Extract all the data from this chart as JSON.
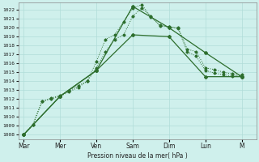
{
  "background_color": "#cff0ec",
  "grid_color": "#b0ddd8",
  "line_color": "#2d6e2d",
  "ylabel_text": "Pression niveau de la mer( hPa )",
  "ylim": [
    1007.5,
    1022.8
  ],
  "yticks": [
    1008,
    1009,
    1010,
    1011,
    1012,
    1013,
    1014,
    1015,
    1016,
    1017,
    1018,
    1019,
    1020,
    1021,
    1022
  ],
  "day_labels": [
    "Mar",
    "Mer",
    "Ven",
    "Sam",
    "Dim",
    "Lun",
    "M"
  ],
  "day_positions": [
    0,
    2,
    4,
    6,
    8,
    10,
    12
  ],
  "xlim": [
    -0.3,
    12.8
  ],
  "dotted1_x": [
    0,
    0.5,
    1.0,
    1.5,
    2.0,
    2.5,
    3.0,
    3.5,
    4.0,
    4.5,
    5.0,
    5.5,
    6.0,
    6.5,
    7.0,
    7.5,
    8.0,
    8.5,
    9.0,
    9.5,
    10.0,
    10.5,
    11.0,
    11.5,
    12.0
  ],
  "dotted1_y": [
    1008.0,
    1009.1,
    1011.7,
    1012.0,
    1012.3,
    1012.8,
    1013.3,
    1014.0,
    1016.2,
    1018.7,
    1019.2,
    1020.7,
    1022.2,
    1022.6,
    1021.2,
    1020.3,
    1020.1,
    1020.0,
    1017.6,
    1017.3,
    1015.5,
    1015.3,
    1015.0,
    1014.8,
    1014.7
  ],
  "dotted2_x": [
    0,
    0.5,
    1.0,
    1.5,
    2.0,
    2.5,
    3.0,
    3.5,
    4.0,
    4.5,
    5.0,
    5.5,
    6.0,
    6.5,
    7.0,
    7.5,
    8.0,
    8.5,
    9.0,
    9.5,
    10.0,
    10.5,
    11.0,
    11.5,
    12.0
  ],
  "dotted2_y": [
    1008.0,
    1009.1,
    1011.7,
    1012.1,
    1012.4,
    1012.9,
    1013.5,
    1014.0,
    1015.5,
    1017.3,
    1018.7,
    1019.2,
    1021.3,
    1022.2,
    1021.3,
    1020.2,
    1020.1,
    1019.9,
    1017.3,
    1016.8,
    1015.2,
    1014.9,
    1014.7,
    1014.6,
    1014.6
  ],
  "solid1_x": [
    0,
    2.0,
    4.0,
    6.0,
    8.0,
    10.0,
    12.0
  ],
  "solid1_y": [
    1008.0,
    1012.3,
    1015.2,
    1019.2,
    1019.0,
    1014.5,
    1014.5
  ],
  "solid2_x": [
    0,
    2.0,
    4.0,
    6.0,
    8.0,
    10.0,
    12.0
  ],
  "solid2_y": [
    1008.0,
    1012.3,
    1015.2,
    1022.4,
    1020.0,
    1017.2,
    1014.5
  ]
}
